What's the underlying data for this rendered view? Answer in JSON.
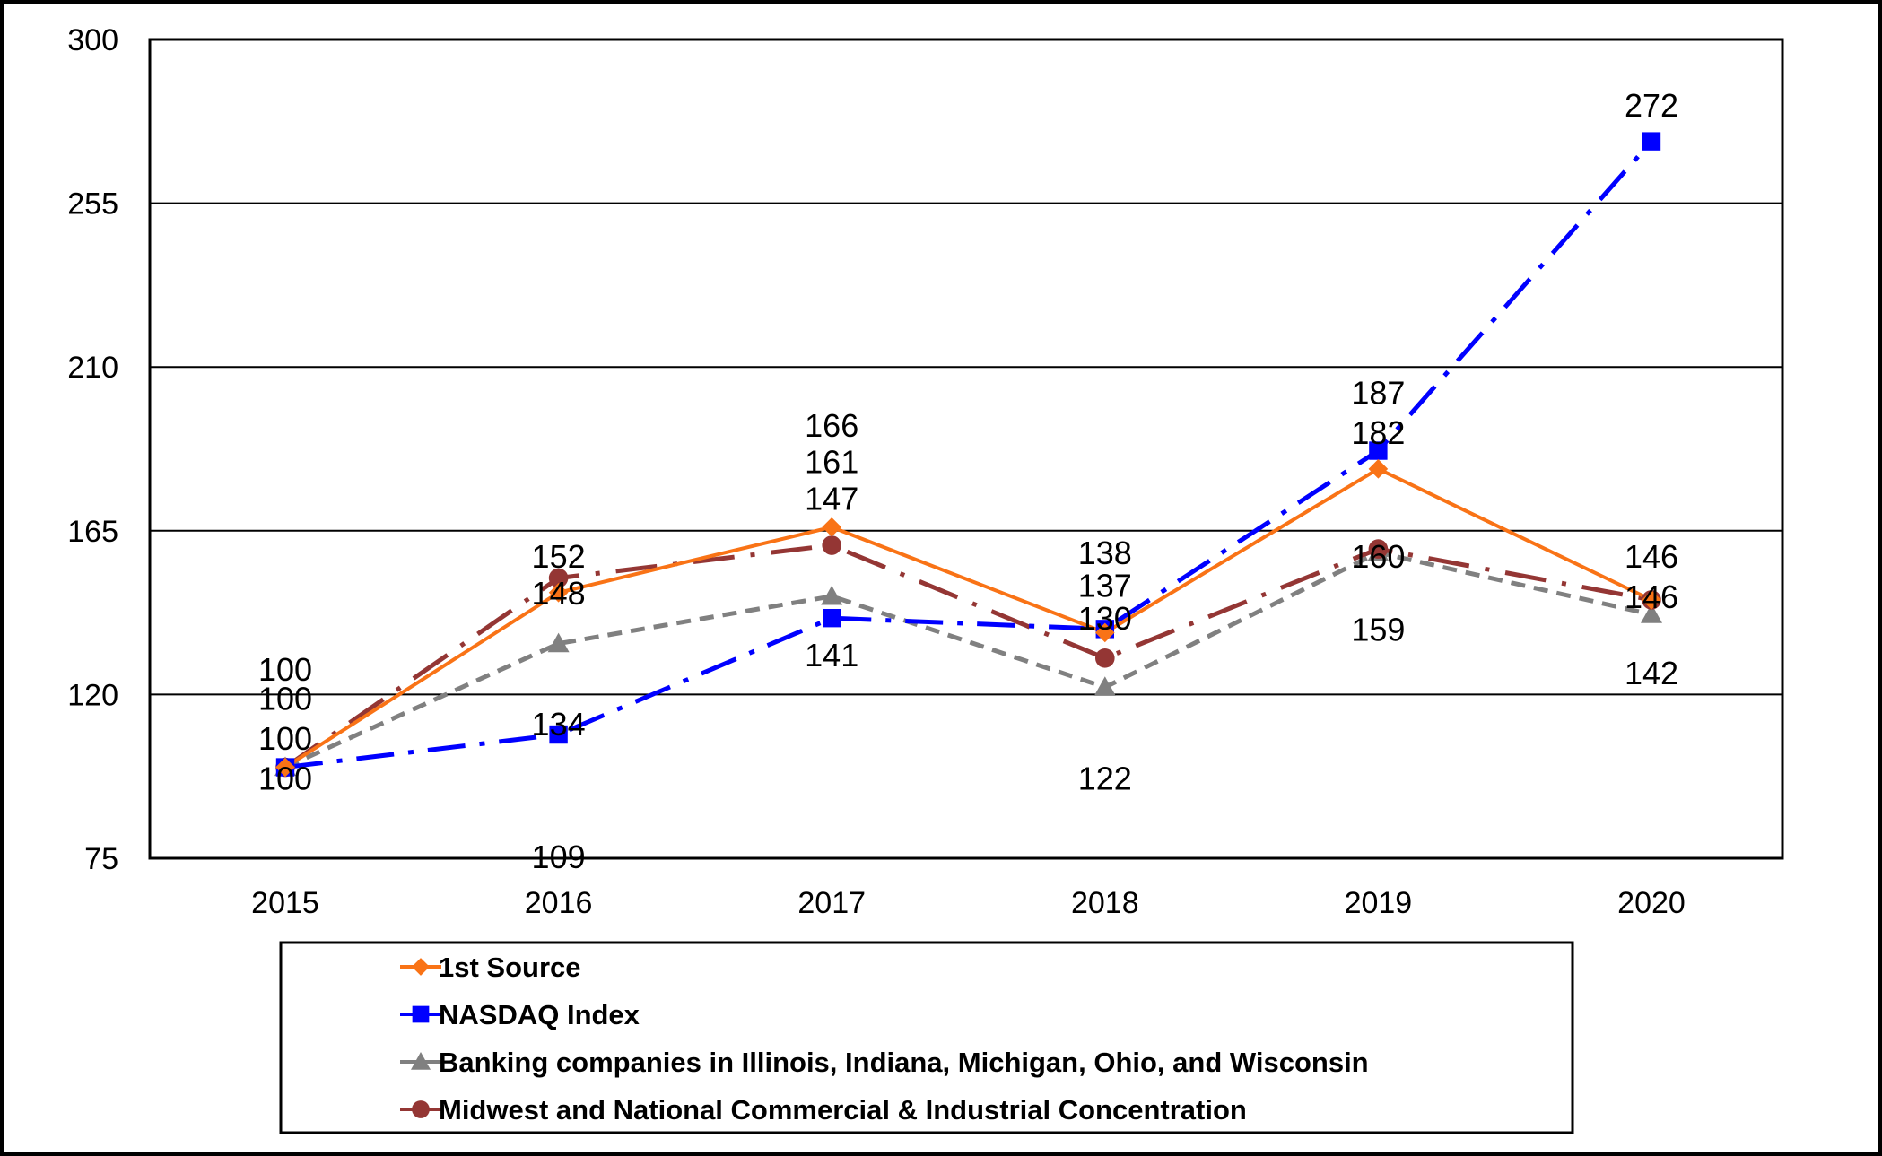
{
  "chart_data": {
    "type": "line",
    "categories": [
      "2015",
      "2016",
      "2017",
      "2018",
      "2019",
      "2020"
    ],
    "ylim": [
      75,
      300
    ],
    "yticks": [
      75,
      120,
      165,
      210,
      255,
      300
    ],
    "grid": true,
    "legend_position": "bottom",
    "series": [
      {
        "name": "1st Source",
        "values": [
          100,
          148,
          166,
          137,
          182,
          146
        ],
        "color": "#F97316",
        "marker": "diamond",
        "dash": "solid"
      },
      {
        "name": "NASDAQ Index",
        "values": [
          100,
          109,
          141,
          138,
          187,
          272
        ],
        "color": "#0000FF",
        "marker": "square",
        "dash": "dashdot"
      },
      {
        "name": "Banking companies in Illinois, Indiana, Michigan, Ohio, and Wisconsin",
        "values": [
          100,
          134,
          147,
          122,
          159,
          142
        ],
        "color": "#808080",
        "marker": "triangle",
        "dash": "dash"
      },
      {
        "name": "Midwest and National Commercial & Industrial Concentration",
        "values": [
          100,
          152,
          161,
          130,
          160,
          146
        ],
        "color": "#943634",
        "marker": "circle",
        "dash": "longdashdot"
      }
    ],
    "data_labels": [
      {
        "text": "100",
        "x": "2015",
        "y": 127
      },
      {
        "text": "100",
        "x": "2015",
        "y": 119
      },
      {
        "text": "100",
        "x": "2015",
        "y": 108
      },
      {
        "text": "100",
        "x": "2015",
        "y": 97
      },
      {
        "text": "152",
        "x": "2016",
        "y": 158
      },
      {
        "text": "148",
        "x": "2016",
        "y": 148
      },
      {
        "text": "134",
        "x": "2016",
        "y": 112
      },
      {
        "text": "109",
        "x": "2016",
        "y": 75.5
      },
      {
        "text": "166",
        "x": "2017",
        "y": 194
      },
      {
        "text": "161",
        "x": "2017",
        "y": 184
      },
      {
        "text": "147",
        "x": "2017",
        "y": 174
      },
      {
        "text": "141",
        "x": "2017",
        "y": 131
      },
      {
        "text": "138",
        "x": "2018",
        "y": 159
      },
      {
        "text": "137",
        "x": "2018",
        "y": 150
      },
      {
        "text": "130",
        "x": "2018",
        "y": 141
      },
      {
        "text": "122",
        "x": "2018",
        "y": 97
      },
      {
        "text": "187",
        "x": "2019",
        "y": 203
      },
      {
        "text": "182",
        "x": "2019",
        "y": 192
      },
      {
        "text": "160",
        "x": "2019",
        "y": 158
      },
      {
        "text": "159",
        "x": "2019",
        "y": 138
      },
      {
        "text": "146",
        "x": "2020",
        "y": 158
      },
      {
        "text": "146",
        "x": "2020",
        "y": 147
      },
      {
        "text": "142",
        "x": "2020",
        "y": 126
      },
      {
        "text": "272",
        "x": "2020",
        "y": 282
      }
    ]
  }
}
